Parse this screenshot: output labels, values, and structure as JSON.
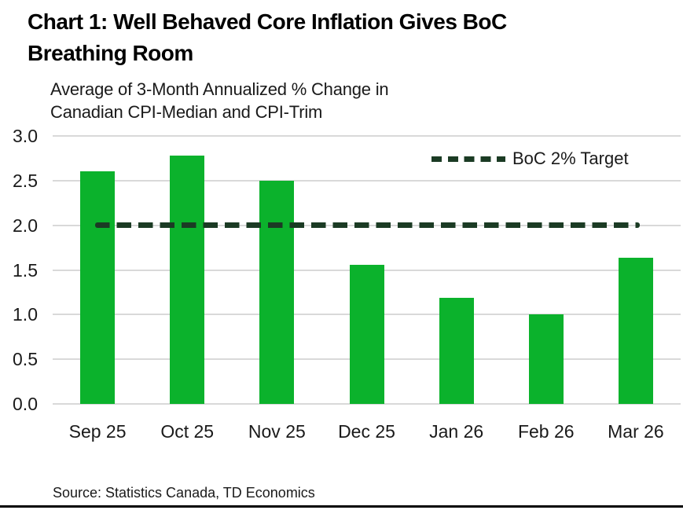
{
  "title": {
    "line1": "Chart 1: Well Behaved Core Inflation Gives BoC",
    "line2": "Breathing Room"
  },
  "subtitle": {
    "line1": "Average of 3-Month Annualized % Change in",
    "line2": "Canadian CPI-Median and CPI-Trim"
  },
  "source": "Source: Statistics Canada, TD Economics",
  "colors": {
    "bar": "#0BB22C",
    "target_line": "#1B3B24",
    "gridline": "#D9D9D9",
    "text": "#1A1A1A"
  },
  "chart_data": {
    "type": "bar",
    "title": "Chart 1: Well Behaved Core Inflation Gives BoC Breathing Room",
    "subtitle": "Average of 3-Month Annualized % Change in Canadian CPI-Median and CPI-Trim",
    "categories": [
      "Sep 25",
      "Oct 25",
      "Nov 25",
      "Dec 25",
      "Jan 26",
      "Feb 26",
      "Mar 26"
    ],
    "values": [
      2.6,
      2.78,
      2.5,
      1.56,
      1.19,
      1.0,
      1.64
    ],
    "xlabel": "",
    "ylabel": "",
    "ylim": [
      0,
      3.0
    ],
    "ytick_step": 0.5,
    "ytick_labels": [
      "0.0",
      "0.5",
      "1.0",
      "1.5",
      "2.0",
      "2.5",
      "3.0"
    ],
    "grid": "horizontal",
    "target_line": {
      "value": 2.0,
      "label": "BoC 2% Target",
      "style": "dashed"
    },
    "legend": {
      "label": "BoC 2% Target",
      "position": "top-right"
    }
  }
}
